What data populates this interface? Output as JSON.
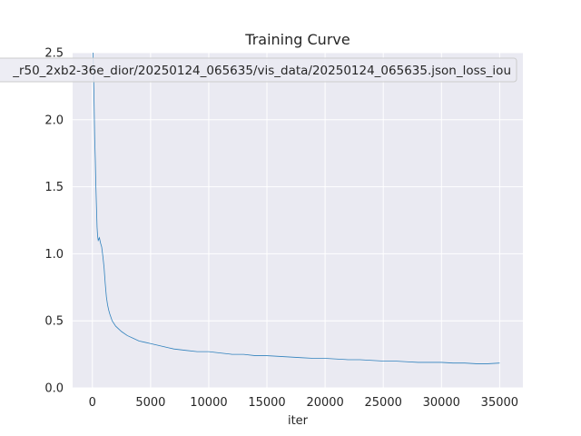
{
  "chart_data": {
    "type": "line",
    "title": "Training Curve",
    "xlabel": "iter",
    "ylabel": "",
    "xlim": [
      -1700,
      37000
    ],
    "ylim": [
      0.0,
      2.5
    ],
    "x_ticks": [
      0,
      5000,
      10000,
      15000,
      20000,
      25000,
      30000,
      35000
    ],
    "x_tick_labels": [
      "0",
      "5000",
      "10000",
      "15000",
      "20000",
      "25000",
      "30000",
      "35000"
    ],
    "y_ticks": [
      0.0,
      0.5,
      1.0,
      1.5,
      2.0,
      2.5
    ],
    "y_tick_labels": [
      "0.0",
      "0.5",
      "1.0",
      "1.5",
      "2.0",
      "2.5"
    ],
    "grid": true,
    "legend_position": "top",
    "series": [
      {
        "name": "_r50_2xb2-36e_dior/20250124_065635/vis_data/20250124_065635.json_loss_iou",
        "color": "#3182bd",
        "x": [
          50,
          100,
          150,
          200,
          250,
          300,
          350,
          400,
          450,
          500,
          600,
          700,
          800,
          900,
          1000,
          1100,
          1200,
          1300,
          1400,
          1500,
          1700,
          2000,
          2500,
          3000,
          3500,
          4000,
          4500,
          5000,
          5500,
          6000,
          6500,
          7000,
          8000,
          9000,
          10000,
          11000,
          12000,
          13000,
          14000,
          15000,
          16000,
          17000,
          18000,
          19000,
          20000,
          21000,
          22000,
          23000,
          24000,
          25000,
          26000,
          27000,
          28000,
          29000,
          30000,
          31000,
          32000,
          33000,
          34000,
          35000
        ],
        "y": [
          2.5,
          2.35,
          2.1,
          1.85,
          1.7,
          1.5,
          1.35,
          1.2,
          1.13,
          1.1,
          1.12,
          1.08,
          1.05,
          0.98,
          0.9,
          0.78,
          0.68,
          0.62,
          0.58,
          0.55,
          0.5,
          0.46,
          0.42,
          0.39,
          0.37,
          0.35,
          0.34,
          0.33,
          0.32,
          0.31,
          0.3,
          0.29,
          0.28,
          0.27,
          0.27,
          0.26,
          0.25,
          0.25,
          0.24,
          0.24,
          0.235,
          0.23,
          0.225,
          0.22,
          0.22,
          0.215,
          0.21,
          0.21,
          0.205,
          0.2,
          0.2,
          0.195,
          0.19,
          0.19,
          0.19,
          0.185,
          0.185,
          0.18,
          0.18,
          0.185
        ]
      }
    ]
  }
}
